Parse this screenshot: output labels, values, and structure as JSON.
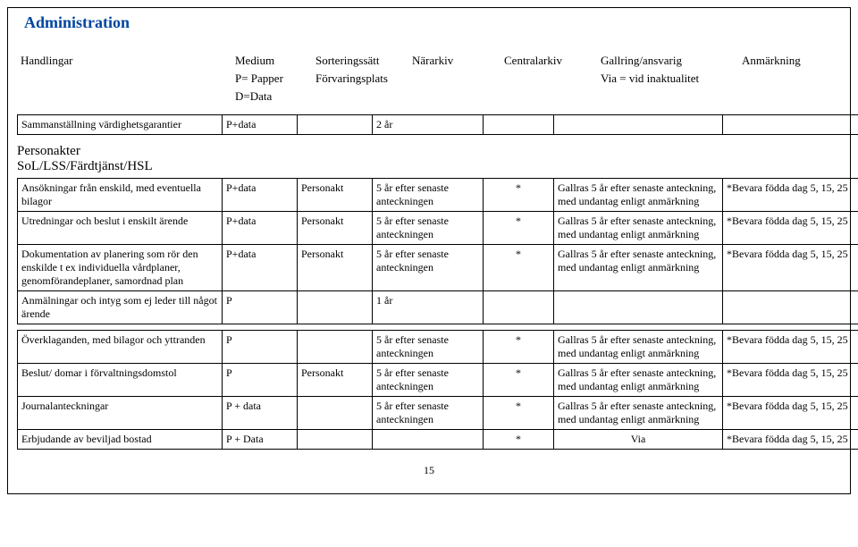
{
  "title": "Administration",
  "headers": {
    "col1": "Handlingar",
    "col2": {
      "line1": "Medium",
      "line2": "P= Papper",
      "line3": "D=Data"
    },
    "col3": {
      "line1": "Sorteringssätt",
      "line2": "Förvaringsplats"
    },
    "col4": "Närarkiv",
    "col5": "Centralarkiv",
    "col6": {
      "line1": "Gallring/ansvarig",
      "line2": "Via = vid inaktualitet"
    },
    "col7": "Anmärkning"
  },
  "row_pre": {
    "c1": "Sammanställning värdighetsgarantier",
    "c2": "P+data",
    "c4": "2 år"
  },
  "section": "Personakter\nSoL/LSS/Färdtjänst/HSL",
  "rows": [
    {
      "c1": "Ansökningar från enskild, med eventuella bilagor",
      "c2": "P+data",
      "c3": "Personakt",
      "c4": "5 år efter senaste anteckningen",
      "c5": "*",
      "c6": "Gallras 5 år efter senaste anteckning, med undantag enligt anmärkning",
      "c7": "*Bevara födda dag 5, 15, 25"
    },
    {
      "c1": "Utredningar och beslut i enskilt ärende",
      "c2": "P+data",
      "c3": "Personakt",
      "c4": "5 år efter senaste anteckningen",
      "c5": "*",
      "c6": "Gallras 5 år efter senaste anteckning, med undantag enligt anmärkning",
      "c7": "*Bevara födda dag 5, 15, 25"
    },
    {
      "c1": "Dokumentation av planering som rör den enskilde t ex individuella vårdplaner, genomförandeplaner, samordnad plan",
      "c2": "P+data",
      "c3": "Personakt",
      "c4": "5 år efter senaste anteckningen",
      "c5": "*",
      "c6": "Gallras 5 år efter senaste anteckning, med undantag enligt anmärkning",
      "c7": "*Bevara födda dag 5, 15, 25"
    },
    {
      "c1": "Anmälningar och intyg som ej leder till något ärende",
      "c2": "P",
      "c3": "",
      "c4": "1 år",
      "c5": "",
      "c6": "",
      "c7": ""
    },
    {
      "c1": "Överklaganden, med bilagor och yttranden",
      "c2": "P",
      "c3": "",
      "c4": "5 år efter senaste anteckningen",
      "c5": "*",
      "c6": "Gallras 5 år efter senaste anteckning, med undantag enligt anmärkning",
      "c7": "*Bevara födda dag 5, 15, 25"
    },
    {
      "c1": "Beslut/ domar i förvaltningsdomstol",
      "c2": "P",
      "c3": "Personakt",
      "c4": "5 år efter senaste anteckningen",
      "c5": "*",
      "c6": "Gallras 5 år efter senaste anteckning, med undantag enligt anmärkning",
      "c7": "*Bevara födda dag 5, 15, 25"
    },
    {
      "c1": "Journalanteckningar",
      "c2": "P + data",
      "c3": "",
      "c4": "5 år efter senaste anteckningen",
      "c5": "*",
      "c6": "Gallras 5 år efter senaste anteckning, med undantag enligt anmärkning",
      "c7": "*Bevara födda dag 5, 15, 25"
    },
    {
      "c1": "Erbjudande av beviljad bostad",
      "c2": "P + Data",
      "c3": "",
      "c4": "",
      "c5": "*",
      "c6": "Via",
      "c7": "*Bevara födda dag 5, 15, 25"
    }
  ],
  "page_number": "15"
}
